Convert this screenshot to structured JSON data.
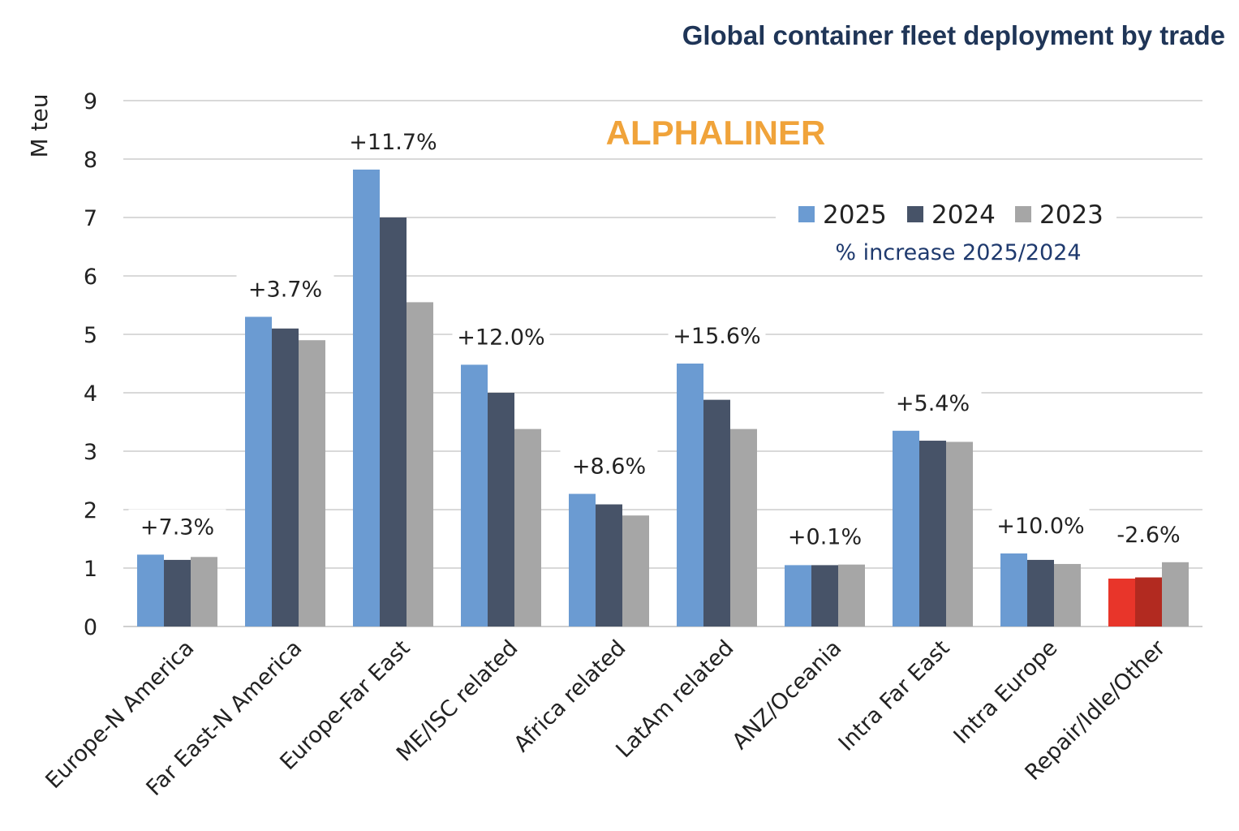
{
  "chart_data": {
    "type": "bar",
    "title": "Global container fleet deployment by trade",
    "brand": "ALPHALINER",
    "ylabel": "M teu",
    "ylim": [
      0,
      9
    ],
    "yticks": [
      "0",
      "1",
      "2",
      "3",
      "4",
      "5",
      "6",
      "7",
      "8",
      "9"
    ],
    "grid": true,
    "legend_position": "top-right",
    "legend_note": "% increase 2025/2024",
    "categories": [
      "Europe-N America",
      "Far East-N America",
      "Europe-Far East",
      "ME/ISC related",
      "Africa related",
      "LatAm related",
      "ANZ/Oceania",
      "Intra Far East",
      "Intra Europe",
      "Repair/Idle/Other"
    ],
    "series": [
      {
        "name": "2025",
        "color": "#6b9bd2",
        "values": [
          1.23,
          5.3,
          7.82,
          4.48,
          2.27,
          4.5,
          1.05,
          3.35,
          1.25,
          0.82
        ]
      },
      {
        "name": "2024",
        "color": "#475368",
        "values": [
          1.14,
          5.1,
          7.0,
          4.0,
          2.09,
          3.88,
          1.05,
          3.18,
          1.14,
          0.84
        ]
      },
      {
        "name": "2023",
        "color": "#a6a6a6",
        "values": [
          1.19,
          4.9,
          5.55,
          3.38,
          1.9,
          3.38,
          1.06,
          3.16,
          1.07,
          1.1
        ]
      }
    ],
    "highlight": {
      "category_index": 9,
      "colors": {
        "2025": "#e8352a",
        "2024": "#b22a20"
      }
    },
    "annotations": [
      "+7.3%",
      "+3.7%",
      "+11.7%",
      "+12.0%",
      "+8.6%",
      "+15.6%",
      "+0.1%",
      "+5.4%",
      "+10.0%",
      "-2.6%"
    ]
  }
}
